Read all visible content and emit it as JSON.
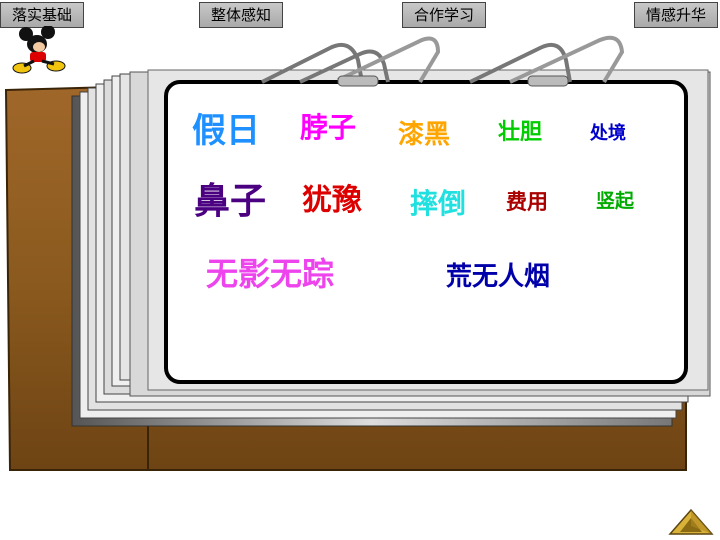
{
  "nav": {
    "btn1": "落实基础",
    "btn2": "整体感知",
    "btn3": "合作学习",
    "btn4": "情感升华"
  },
  "words": [
    {
      "text": "假日",
      "color": "#1E90FF"
    },
    {
      "text": "脖子",
      "color": "#FF00FF"
    },
    {
      "text": "漆黑",
      "color": "#FFA500"
    },
    {
      "text": "壮胆",
      "color": "#00CC00"
    },
    {
      "text": "处境",
      "color": "#0000CC"
    },
    {
      "text": "鼻子",
      "color": "#4B0082"
    },
    {
      "text": "犹豫",
      "color": "#DD0000"
    },
    {
      "text": "摔倒",
      "color": "#20E0E0"
    },
    {
      "text": "费用",
      "color": "#AA0000"
    },
    {
      "text": "竖起",
      "color": "#00AA00"
    },
    {
      "text": "无影无踪",
      "color": "#EE44EE"
    },
    {
      "text": "荒无人烟",
      "color": "#0000AA"
    }
  ],
  "icons": {
    "mascot": "mickey-mouse-icon",
    "next": "triangle-next-icon"
  },
  "colors": {
    "board_wood": "#8B5A1E",
    "card_border": "#000000",
    "nav_button": "#b4b4b4"
  }
}
